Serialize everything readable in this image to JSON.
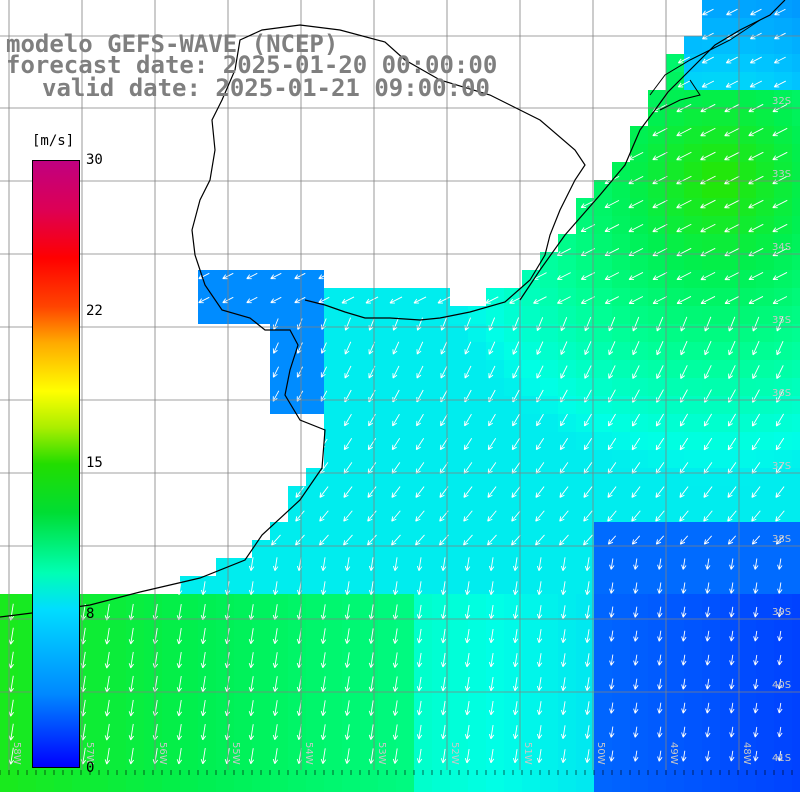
{
  "title": {
    "line1": "modelo GEFS-WAVE (NCEP)",
    "line2": "forecast date: 2025-01-20 00:00:00",
    "line3": "valid date: 2025-01-21 09:00:00"
  },
  "colorbar": {
    "unit": "[m/s]",
    "ticks": [
      {
        "label": "30",
        "value": 30
      },
      {
        "label": "22",
        "value": 22
      },
      {
        "label": "15",
        "value": 15
      },
      {
        "label": "8",
        "value": 8
      },
      {
        "label": "0",
        "value": 0
      }
    ]
  },
  "lat_labels": [
    "32S",
    "33S",
    "34S",
    "35S",
    "36S",
    "37S",
    "38S",
    "39S",
    "40S",
    "41S"
  ],
  "lon_labels": [
    "58W",
    "57W",
    "56W",
    "55W",
    "54W",
    "53W",
    "52W",
    "51W",
    "50W",
    "49W",
    "48W"
  ],
  "colors": {
    "land": "#ffffff",
    "grid": "#808080",
    "coast": "#000000",
    "arrow": "#ffffff",
    "title": "#7f7f7f"
  }
}
